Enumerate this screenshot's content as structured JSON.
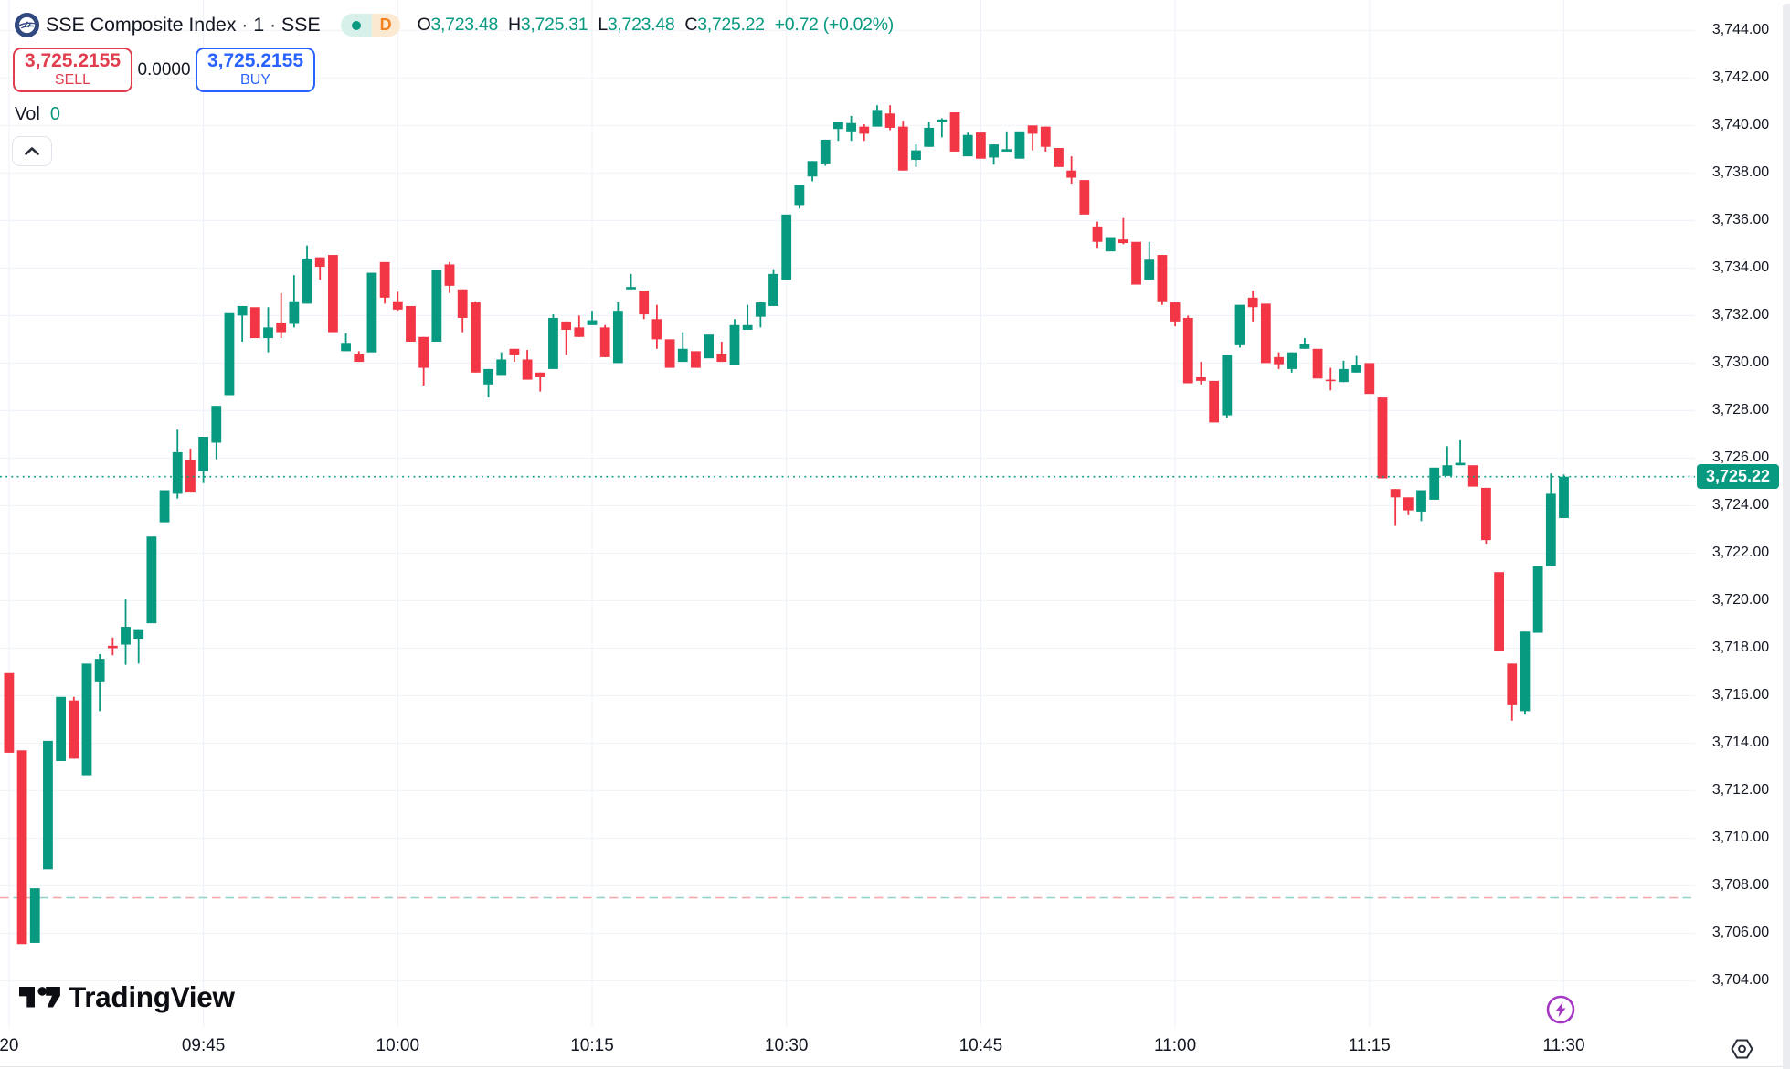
{
  "header": {
    "symbol_title": "SSE Composite Index · 1 · SSE",
    "logo_icon": "sse-exchange-logo",
    "status_pill": {
      "market_dot_icon": "market-open-dot",
      "data_mode_badge": "D"
    },
    "ohlc": {
      "open_label": "O",
      "open": "3,723.48",
      "high_label": "H",
      "high": "3,725.31",
      "low_label": "L",
      "low": "3,723.48",
      "close_label": "C",
      "close": "3,725.22",
      "change": "+0.72 (+0.02%)"
    },
    "sell_button": {
      "price": "3,725.2155",
      "label": "SELL"
    },
    "spread": "0.0000",
    "buy_button": {
      "price": "3,725.2155",
      "label": "BUY"
    },
    "volume_label": "Vol",
    "volume_value": "0"
  },
  "footer": {
    "brand": "TradingView"
  },
  "icons": {
    "symbol_logo": "sse-exchange-logo-icon",
    "market_status": "market-open-dot-icon",
    "legend_collapse": "chevron-up-icon",
    "footer_brand": "tradingview-logo-icon",
    "bottom_right_action": "lightning-bolt-icon",
    "price_scale": "price-scale-settings-icon"
  },
  "colors": {
    "up": "#089981",
    "down": "#f23645",
    "grid": "#f0f3fa",
    "text": "#131722",
    "buy_blue": "#2962ff",
    "sell_red": "#e03e4e",
    "price_tag_bg": "#089981",
    "flash_purple": "#a438c2",
    "prev_close_red": "#f6a8ab",
    "prev_close_teal": "#93d3c8"
  },
  "chart_data": {
    "type": "candlestick",
    "title": "SSE Composite Index · 1 · SSE",
    "interval": "1 minute",
    "xlabel": "",
    "ylabel": "",
    "ylim": [
      3702.06,
      3745.28
    ],
    "grid": true,
    "price_axis_ticks": [
      "3,744.00",
      "3,742.00",
      "3,740.00",
      "3,738.00",
      "3,736.00",
      "3,734.00",
      "3,732.00",
      "3,730.00",
      "3,728.00",
      "3,726.00",
      "3,724.00",
      "3,722.00",
      "3,720.00",
      "3,718.00",
      "3,716.00",
      "3,714.00",
      "3,712.00",
      "3,710.00",
      "3,708.00",
      "3,706.00",
      "3,704.00"
    ],
    "price_axis_tick_values": [
      3744,
      3742,
      3740,
      3738,
      3736,
      3734,
      3732,
      3730,
      3728,
      3726,
      3724,
      3722,
      3720,
      3718,
      3716,
      3714,
      3712,
      3710,
      3708,
      3706,
      3704
    ],
    "time_axis_ticks": [
      {
        "label": "20",
        "candle_index": 0
      },
      {
        "label": "09:45",
        "candle_index": 15
      },
      {
        "label": "10:00",
        "candle_index": 30
      },
      {
        "label": "10:15",
        "candle_index": 45
      },
      {
        "label": "10:30",
        "candle_index": 60
      },
      {
        "label": "10:45",
        "candle_index": 75
      },
      {
        "label": "11:00",
        "candle_index": 90
      },
      {
        "label": "11:15",
        "candle_index": 105
      },
      {
        "label": "11:30",
        "candle_index": 120
      }
    ],
    "current_price": 3725.22,
    "current_price_label": "3,725.22",
    "previous_close": 3707.5,
    "candles": [
      {
        "t": "09:30",
        "o": 3716.95,
        "h": 3716.95,
        "l": 3713.6,
        "c": 3713.6
      },
      {
        "t": "09:31",
        "o": 3713.7,
        "h": 3713.7,
        "l": 3705.55,
        "c": 3705.55
      },
      {
        "t": "09:32",
        "o": 3705.6,
        "h": 3707.9,
        "l": 3705.6,
        "c": 3707.9
      },
      {
        "t": "09:33",
        "o": 3708.7,
        "h": 3714.1,
        "l": 3708.7,
        "c": 3714.1
      },
      {
        "t": "09:34",
        "o": 3713.25,
        "h": 3715.95,
        "l": 3713.25,
        "c": 3715.95
      },
      {
        "t": "09:35",
        "o": 3715.8,
        "h": 3715.95,
        "l": 3713.35,
        "c": 3713.35
      },
      {
        "t": "09:36",
        "o": 3712.65,
        "h": 3717.35,
        "l": 3712.65,
        "c": 3717.35
      },
      {
        "t": "09:37",
        "o": 3716.6,
        "h": 3717.75,
        "l": 3715.35,
        "c": 3717.55
      },
      {
        "t": "09:38",
        "o": 3718.1,
        "h": 3718.45,
        "l": 3717.7,
        "c": 3718.0
      },
      {
        "t": "09:39",
        "o": 3718.15,
        "h": 3720.05,
        "l": 3717.3,
        "c": 3718.9
      },
      {
        "t": "09:40",
        "o": 3718.4,
        "h": 3718.8,
        "l": 3717.35,
        "c": 3718.8
      },
      {
        "t": "09:41",
        "o": 3719.05,
        "h": 3722.7,
        "l": 3719.05,
        "c": 3722.7
      },
      {
        "t": "09:42",
        "o": 3723.3,
        "h": 3724.65,
        "l": 3723.3,
        "c": 3724.65
      },
      {
        "t": "09:43",
        "o": 3724.5,
        "h": 3727.2,
        "l": 3724.3,
        "c": 3726.25
      },
      {
        "t": "09:44",
        "o": 3725.9,
        "h": 3726.4,
        "l": 3724.55,
        "c": 3724.55
      },
      {
        "t": "09:45",
        "o": 3725.45,
        "h": 3726.9,
        "l": 3724.95,
        "c": 3726.9
      },
      {
        "t": "09:46",
        "o": 3726.65,
        "h": 3728.2,
        "l": 3725.95,
        "c": 3728.2
      },
      {
        "t": "09:47",
        "o": 3728.65,
        "h": 3732.1,
        "l": 3728.65,
        "c": 3732.1
      },
      {
        "t": "09:48",
        "o": 3732.0,
        "h": 3732.4,
        "l": 3730.9,
        "c": 3732.4
      },
      {
        "t": "09:49",
        "o": 3732.35,
        "h": 3732.35,
        "l": 3731.05,
        "c": 3731.05
      },
      {
        "t": "09:50",
        "o": 3731.05,
        "h": 3732.35,
        "l": 3730.45,
        "c": 3731.5
      },
      {
        "t": "09:51",
        "o": 3731.7,
        "h": 3732.95,
        "l": 3731.05,
        "c": 3731.3
      },
      {
        "t": "09:52",
        "o": 3731.65,
        "h": 3733.7,
        "l": 3731.5,
        "c": 3732.6
      },
      {
        "t": "09:53",
        "o": 3732.5,
        "h": 3734.95,
        "l": 3732.5,
        "c": 3734.4
      },
      {
        "t": "09:54",
        "o": 3734.45,
        "h": 3734.45,
        "l": 3733.5,
        "c": 3734.05
      },
      {
        "t": "09:55",
        "o": 3734.55,
        "h": 3734.55,
        "l": 3731.3,
        "c": 3731.3
      },
      {
        "t": "09:56",
        "o": 3730.5,
        "h": 3731.25,
        "l": 3730.5,
        "c": 3730.85
      },
      {
        "t": "09:57",
        "o": 3730.4,
        "h": 3730.5,
        "l": 3730.05,
        "c": 3730.05
      },
      {
        "t": "09:58",
        "o": 3730.45,
        "h": 3733.8,
        "l": 3730.45,
        "c": 3733.8
      },
      {
        "t": "09:59",
        "o": 3734.25,
        "h": 3734.25,
        "l": 3732.5,
        "c": 3732.75
      },
      {
        "t": "10:00",
        "o": 3732.6,
        "h": 3733.0,
        "l": 3732.2,
        "c": 3732.25
      },
      {
        "t": "10:01",
        "o": 3732.4,
        "h": 3732.4,
        "l": 3730.9,
        "c": 3730.9
      },
      {
        "t": "10:02",
        "o": 3731.1,
        "h": 3731.1,
        "l": 3729.05,
        "c": 3729.8
      },
      {
        "t": "10:03",
        "o": 3730.9,
        "h": 3733.9,
        "l": 3730.9,
        "c": 3733.9
      },
      {
        "t": "10:04",
        "o": 3734.15,
        "h": 3734.25,
        "l": 3732.95,
        "c": 3733.25
      },
      {
        "t": "10:05",
        "o": 3733.1,
        "h": 3733.1,
        "l": 3731.3,
        "c": 3731.9
      },
      {
        "t": "10:06",
        "o": 3732.55,
        "h": 3732.6,
        "l": 3729.6,
        "c": 3729.6
      },
      {
        "t": "10:07",
        "o": 3729.1,
        "h": 3729.75,
        "l": 3728.55,
        "c": 3729.75
      },
      {
        "t": "10:08",
        "o": 3729.5,
        "h": 3730.45,
        "l": 3729.5,
        "c": 3730.15
      },
      {
        "t": "10:09",
        "o": 3730.6,
        "h": 3730.6,
        "l": 3730.05,
        "c": 3730.35
      },
      {
        "t": "10:10",
        "o": 3730.15,
        "h": 3730.55,
        "l": 3729.3,
        "c": 3729.3
      },
      {
        "t": "10:11",
        "o": 3729.6,
        "h": 3729.6,
        "l": 3728.8,
        "c": 3729.4
      },
      {
        "t": "10:12",
        "o": 3729.75,
        "h": 3732.05,
        "l": 3729.75,
        "c": 3731.9
      },
      {
        "t": "10:13",
        "o": 3731.75,
        "h": 3731.75,
        "l": 3730.35,
        "c": 3731.4
      },
      {
        "t": "10:14",
        "o": 3731.5,
        "h": 3732.0,
        "l": 3731.1,
        "c": 3731.1
      },
      {
        "t": "10:15",
        "o": 3731.6,
        "h": 3732.2,
        "l": 3731.6,
        "c": 3731.8
      },
      {
        "t": "10:16",
        "o": 3731.5,
        "h": 3731.6,
        "l": 3730.25,
        "c": 3730.25
      },
      {
        "t": "10:17",
        "o": 3730.0,
        "h": 3732.55,
        "l": 3730.0,
        "c": 3732.2
      },
      {
        "t": "10:18",
        "o": 3733.1,
        "h": 3733.75,
        "l": 3733.1,
        "c": 3733.2
      },
      {
        "t": "10:19",
        "o": 3733.05,
        "h": 3733.05,
        "l": 3731.85,
        "c": 3732.05
      },
      {
        "t": "10:20",
        "o": 3731.85,
        "h": 3732.45,
        "l": 3730.6,
        "c": 3731.0
      },
      {
        "t": "10:21",
        "o": 3731.0,
        "h": 3731.0,
        "l": 3729.8,
        "c": 3729.8
      },
      {
        "t": "10:22",
        "o": 3730.05,
        "h": 3731.3,
        "l": 3730.05,
        "c": 3730.6
      },
      {
        "t": "10:23",
        "o": 3730.5,
        "h": 3730.5,
        "l": 3729.8,
        "c": 3729.8
      },
      {
        "t": "10:24",
        "o": 3730.2,
        "h": 3731.2,
        "l": 3730.2,
        "c": 3731.2
      },
      {
        "t": "10:25",
        "o": 3730.4,
        "h": 3730.9,
        "l": 3730.05,
        "c": 3730.05
      },
      {
        "t": "10:26",
        "o": 3729.9,
        "h": 3731.85,
        "l": 3729.9,
        "c": 3731.6
      },
      {
        "t": "10:27",
        "o": 3731.4,
        "h": 3732.45,
        "l": 3731.4,
        "c": 3731.6
      },
      {
        "t": "10:28",
        "o": 3731.95,
        "h": 3732.55,
        "l": 3731.5,
        "c": 3732.55
      },
      {
        "t": "10:29",
        "o": 3732.4,
        "h": 3733.95,
        "l": 3732.4,
        "c": 3733.75
      },
      {
        "t": "10:30",
        "o": 3733.5,
        "h": 3736.25,
        "l": 3733.5,
        "c": 3736.25
      },
      {
        "t": "10:31",
        "o": 3736.65,
        "h": 3737.5,
        "l": 3736.5,
        "c": 3737.5
      },
      {
        "t": "10:32",
        "o": 3737.85,
        "h": 3738.5,
        "l": 3737.65,
        "c": 3738.5
      },
      {
        "t": "10:33",
        "o": 3738.4,
        "h": 3739.4,
        "l": 3738.3,
        "c": 3739.4
      },
      {
        "t": "10:34",
        "o": 3739.85,
        "h": 3740.15,
        "l": 3739.35,
        "c": 3740.15
      },
      {
        "t": "10:35",
        "o": 3739.75,
        "h": 3740.4,
        "l": 3739.35,
        "c": 3740.1
      },
      {
        "t": "10:36",
        "o": 3739.95,
        "h": 3740.05,
        "l": 3739.35,
        "c": 3739.65
      },
      {
        "t": "10:37",
        "o": 3739.95,
        "h": 3740.85,
        "l": 3739.95,
        "c": 3740.65
      },
      {
        "t": "10:38",
        "o": 3740.5,
        "h": 3740.85,
        "l": 3739.8,
        "c": 3739.9
      },
      {
        "t": "10:39",
        "o": 3739.95,
        "h": 3740.2,
        "l": 3738.1,
        "c": 3738.1
      },
      {
        "t": "10:40",
        "o": 3738.55,
        "h": 3739.2,
        "l": 3738.25,
        "c": 3738.95
      },
      {
        "t": "10:41",
        "o": 3739.1,
        "h": 3740.15,
        "l": 3739.1,
        "c": 3739.9
      },
      {
        "t": "10:42",
        "o": 3740.15,
        "h": 3740.3,
        "l": 3739.5,
        "c": 3740.25
      },
      {
        "t": "10:43",
        "o": 3740.55,
        "h": 3740.55,
        "l": 3738.9,
        "c": 3738.9
      },
      {
        "t": "10:44",
        "o": 3738.7,
        "h": 3739.7,
        "l": 3738.7,
        "c": 3739.6
      },
      {
        "t": "10:45",
        "o": 3739.7,
        "h": 3739.7,
        "l": 3738.6,
        "c": 3738.6
      },
      {
        "t": "10:46",
        "o": 3738.65,
        "h": 3739.2,
        "l": 3738.35,
        "c": 3739.2
      },
      {
        "t": "10:47",
        "o": 3738.9,
        "h": 3739.75,
        "l": 3738.9,
        "c": 3739.0
      },
      {
        "t": "10:48",
        "o": 3738.6,
        "h": 3739.75,
        "l": 3738.6,
        "c": 3739.75
      },
      {
        "t": "10:49",
        "o": 3740.0,
        "h": 3740.0,
        "l": 3738.95,
        "c": 3739.65
      },
      {
        "t": "10:50",
        "o": 3739.95,
        "h": 3739.95,
        "l": 3738.9,
        "c": 3739.1
      },
      {
        "t": "10:51",
        "o": 3739.05,
        "h": 3739.05,
        "l": 3738.25,
        "c": 3738.25
      },
      {
        "t": "10:52",
        "o": 3738.1,
        "h": 3738.7,
        "l": 3737.55,
        "c": 3737.8
      },
      {
        "t": "10:53",
        "o": 3737.7,
        "h": 3737.7,
        "l": 3736.25,
        "c": 3736.25
      },
      {
        "t": "10:54",
        "o": 3735.75,
        "h": 3735.95,
        "l": 3734.85,
        "c": 3735.1
      },
      {
        "t": "10:55",
        "o": 3734.7,
        "h": 3735.3,
        "l": 3734.7,
        "c": 3735.3
      },
      {
        "t": "10:56",
        "o": 3735.2,
        "h": 3736.1,
        "l": 3735.0,
        "c": 3735.05
      },
      {
        "t": "10:57",
        "o": 3735.1,
        "h": 3735.1,
        "l": 3733.3,
        "c": 3733.3
      },
      {
        "t": "10:58",
        "o": 3733.5,
        "h": 3735.1,
        "l": 3733.5,
        "c": 3734.35
      },
      {
        "t": "10:59",
        "o": 3734.55,
        "h": 3734.55,
        "l": 3732.45,
        "c": 3732.6
      },
      {
        "t": "11:00",
        "o": 3732.55,
        "h": 3732.55,
        "l": 3731.55,
        "c": 3731.75
      },
      {
        "t": "11:01",
        "o": 3731.9,
        "h": 3732.0,
        "l": 3729.15,
        "c": 3729.15
      },
      {
        "t": "11:02",
        "o": 3729.4,
        "h": 3730.05,
        "l": 3729.1,
        "c": 3729.25
      },
      {
        "t": "11:03",
        "o": 3729.25,
        "h": 3729.25,
        "l": 3727.5,
        "c": 3727.5
      },
      {
        "t": "11:04",
        "o": 3727.8,
        "h": 3730.35,
        "l": 3727.7,
        "c": 3730.35
      },
      {
        "t": "11:05",
        "o": 3730.75,
        "h": 3732.45,
        "l": 3730.65,
        "c": 3732.45
      },
      {
        "t": "11:06",
        "o": 3732.75,
        "h": 3733.05,
        "l": 3731.75,
        "c": 3732.35
      },
      {
        "t": "11:07",
        "o": 3732.5,
        "h": 3732.5,
        "l": 3730.0,
        "c": 3730.0
      },
      {
        "t": "11:08",
        "o": 3730.25,
        "h": 3730.45,
        "l": 3729.75,
        "c": 3729.95
      },
      {
        "t": "11:09",
        "o": 3729.75,
        "h": 3730.45,
        "l": 3729.6,
        "c": 3730.45
      },
      {
        "t": "11:10",
        "o": 3730.6,
        "h": 3731.05,
        "l": 3730.6,
        "c": 3730.8
      },
      {
        "t": "11:11",
        "o": 3730.6,
        "h": 3730.6,
        "l": 3729.35,
        "c": 3729.35
      },
      {
        "t": "11:12",
        "o": 3729.3,
        "h": 3729.8,
        "l": 3728.85,
        "c": 3729.25
      },
      {
        "t": "11:13",
        "o": 3729.2,
        "h": 3730.1,
        "l": 3729.2,
        "c": 3729.75
      },
      {
        "t": "11:14",
        "o": 3729.6,
        "h": 3730.3,
        "l": 3729.6,
        "c": 3729.9
      },
      {
        "t": "11:15",
        "o": 3730.0,
        "h": 3730.0,
        "l": 3728.7,
        "c": 3728.7
      },
      {
        "t": "11:16",
        "o": 3728.55,
        "h": 3728.55,
        "l": 3725.15,
        "c": 3725.15
      },
      {
        "t": "11:17",
        "o": 3724.7,
        "h": 3724.7,
        "l": 3723.15,
        "c": 3724.35
      },
      {
        "t": "11:18",
        "o": 3724.35,
        "h": 3724.35,
        "l": 3723.6,
        "c": 3723.8
      },
      {
        "t": "11:19",
        "o": 3723.75,
        "h": 3724.65,
        "l": 3723.35,
        "c": 3724.65
      },
      {
        "t": "11:20",
        "o": 3724.25,
        "h": 3725.6,
        "l": 3724.25,
        "c": 3725.6
      },
      {
        "t": "11:21",
        "o": 3725.25,
        "h": 3726.5,
        "l": 3725.25,
        "c": 3725.7
      },
      {
        "t": "11:22",
        "o": 3725.7,
        "h": 3726.75,
        "l": 3725.7,
        "c": 3725.8
      },
      {
        "t": "11:23",
        "o": 3725.7,
        "h": 3725.7,
        "l": 3724.8,
        "c": 3724.8
      },
      {
        "t": "11:24",
        "o": 3724.75,
        "h": 3724.75,
        "l": 3722.4,
        "c": 3722.55
      },
      {
        "t": "11:25",
        "o": 3721.2,
        "h": 3721.2,
        "l": 3717.9,
        "c": 3717.9
      },
      {
        "t": "11:26",
        "o": 3717.35,
        "h": 3717.35,
        "l": 3714.95,
        "c": 3715.6
      },
      {
        "t": "11:27",
        "o": 3715.35,
        "h": 3718.7,
        "l": 3715.2,
        "c": 3718.7
      },
      {
        "t": "11:28",
        "o": 3718.65,
        "h": 3721.45,
        "l": 3718.65,
        "c": 3721.45
      },
      {
        "t": "11:29",
        "o": 3721.45,
        "h": 3725.35,
        "l": 3721.45,
        "c": 3724.5
      },
      {
        "t": "11:30",
        "o": 3723.48,
        "h": 3725.31,
        "l": 3723.48,
        "c": 3725.22
      }
    ]
  }
}
